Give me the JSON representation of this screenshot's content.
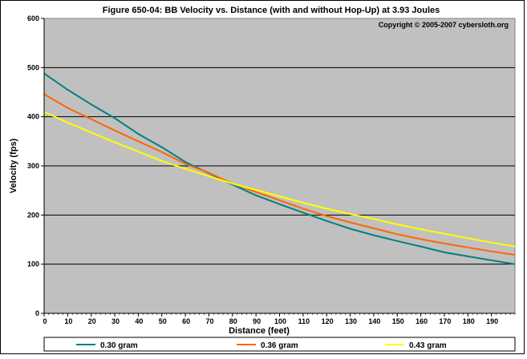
{
  "chart_data": {
    "type": "line",
    "title": "Figure 650-04:  BB Velocity vs. Distance (with and without Hop-Up) at 3.93 Joules",
    "copyright": "Copyright © 2005-2007 cybersloth.org",
    "xlabel": "Distance (feet)",
    "ylabel": "Velocity (fps)",
    "xlim": [
      0,
      200
    ],
    "ylim": [
      0,
      600
    ],
    "x_ticks": [
      "0",
      "10",
      "20",
      "30",
      "40",
      "50",
      "60",
      "70",
      "80",
      "90",
      "100",
      "110",
      "120",
      "130",
      "140",
      "150",
      "160",
      "170",
      "180",
      "190"
    ],
    "y_ticks": [
      "0",
      "100",
      "200",
      "300",
      "400",
      "500",
      "600"
    ],
    "grid": "horizontal",
    "legend_position": "bottom",
    "background_color": "#c0c0c0",
    "x": [
      0,
      10,
      20,
      30,
      40,
      50,
      60,
      70,
      80,
      90,
      100,
      110,
      120,
      130,
      140,
      150,
      160,
      170,
      180,
      190,
      200
    ],
    "series": [
      {
        "name": "0.30 gram",
        "color": "#008080",
        "values": [
          488,
          455,
          425,
          397,
          365,
          338,
          308,
          285,
          262,
          240,
          222,
          205,
          188,
          172,
          159,
          147,
          136,
          124,
          116,
          108,
          100
        ]
      },
      {
        "name": "0.36 gram",
        "color": "#ff6600",
        "values": [
          446,
          418,
          395,
          372,
          350,
          328,
          304,
          286,
          264,
          247,
          230,
          213,
          198,
          185,
          173,
          161,
          151,
          142,
          134,
          126,
          119
        ]
      },
      {
        "name": "0.43 gram",
        "color": "#ffff00",
        "values": [
          410,
          388,
          368,
          348,
          329,
          310,
          294,
          279,
          264,
          251,
          238,
          225,
          213,
          202,
          192,
          181,
          171,
          162,
          153,
          144,
          136
        ]
      }
    ]
  }
}
